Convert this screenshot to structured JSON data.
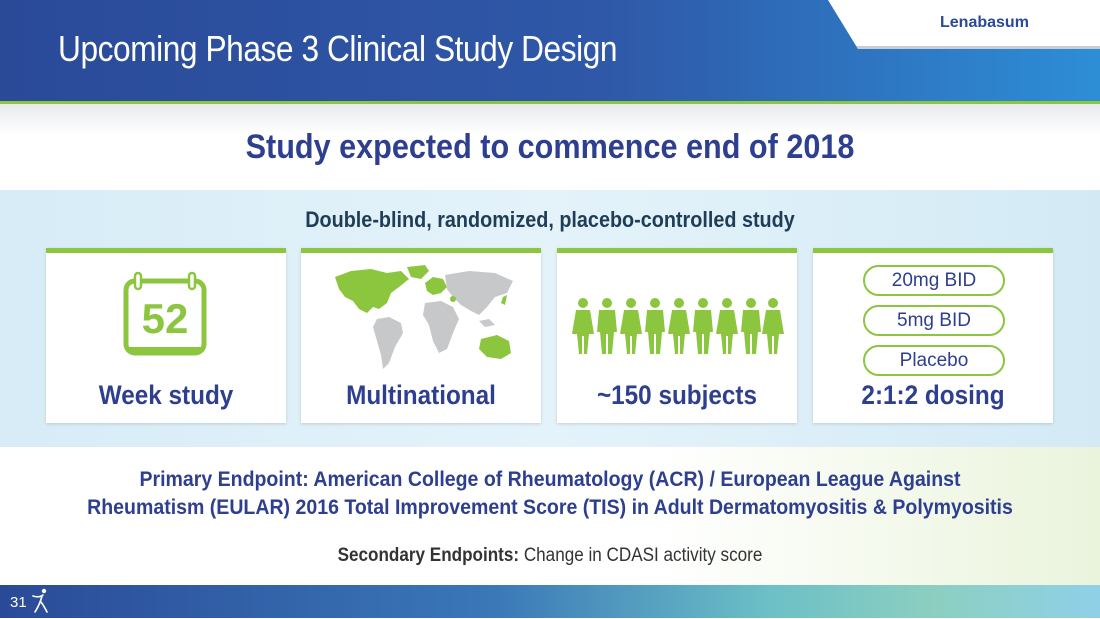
{
  "header": {
    "title": "Upcoming Phase 3 Clinical Study Design",
    "brand": "Lenabasum"
  },
  "subtitle": "Study expected to commence end of 2018",
  "panel": {
    "title": "Double-blind, randomized, placebo-controlled study",
    "cards": [
      {
        "label": "Week study",
        "icon": "calendar-icon",
        "calendar_number": "52"
      },
      {
        "label": "Multinational",
        "icon": "world-map-icon"
      },
      {
        "label": "~150 subjects",
        "icon": "people-icon"
      },
      {
        "label": "2:1:2 dosing",
        "doses": [
          "20mg BID",
          "5mg BID",
          "Placebo"
        ]
      }
    ]
  },
  "endpoints": {
    "primary_line1": "Primary Endpoint: American College of Rheumatology (ACR) / European League Against",
    "primary_line2": "Rheumatism (EULAR) 2016 Total Improvement Score (TIS) in Adult Dermatomyositis & Polymyositis",
    "secondary_label": "Secondary Endpoints:",
    "secondary_text": " Change in CDASI activity score"
  },
  "footer": {
    "page_number": "31"
  },
  "colors": {
    "navy": "#2e3f8f",
    "header_blue": "#2a4a98",
    "accent_green": "#8cc63f",
    "map_gray": "#c6c8ca",
    "panel_blue": "#dceff8"
  }
}
